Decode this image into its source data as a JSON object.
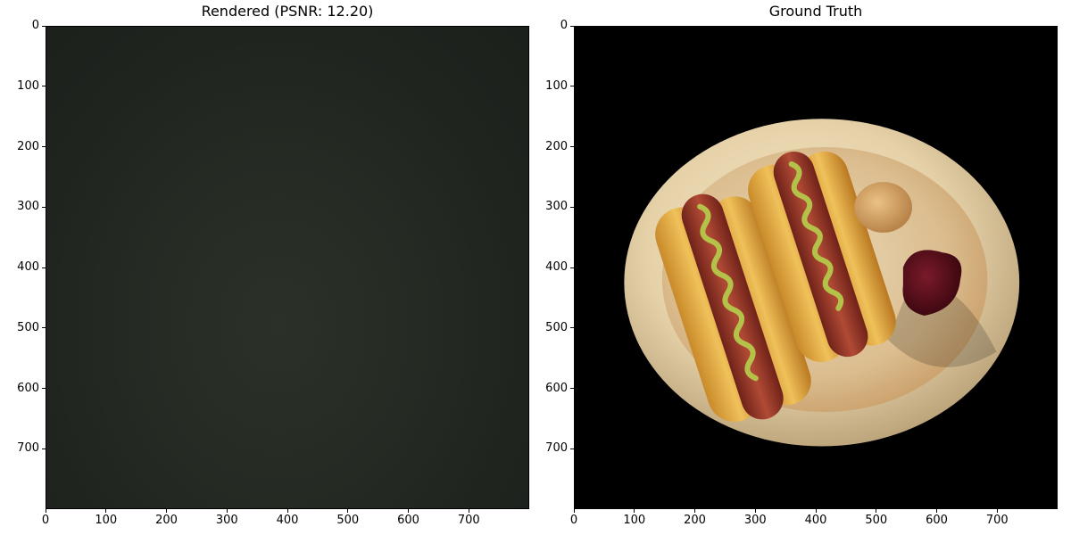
{
  "panels": [
    {
      "title": "Rendered (PSNR: 12.20)",
      "x_ticks": [
        "0",
        "100",
        "200",
        "300",
        "400",
        "500",
        "600",
        "700"
      ],
      "y_ticks": [
        "0",
        "100",
        "200",
        "300",
        "400",
        "500",
        "600",
        "700"
      ]
    },
    {
      "title": "Ground Truth",
      "x_ticks": [
        "0",
        "100",
        "200",
        "300",
        "400",
        "500",
        "600",
        "700"
      ],
      "y_ticks": [
        "0",
        "100",
        "200",
        "300",
        "400",
        "500",
        "600",
        "700"
      ]
    }
  ],
  "colors": {
    "rendered_bg": "#23281f",
    "plate": "#f0e2c4",
    "bun": "#d9a441",
    "sausage": "#9b3b2c",
    "mustard": "#b5c24a",
    "ketchup": "#5d0f1c",
    "sauce": "#d7a868"
  }
}
